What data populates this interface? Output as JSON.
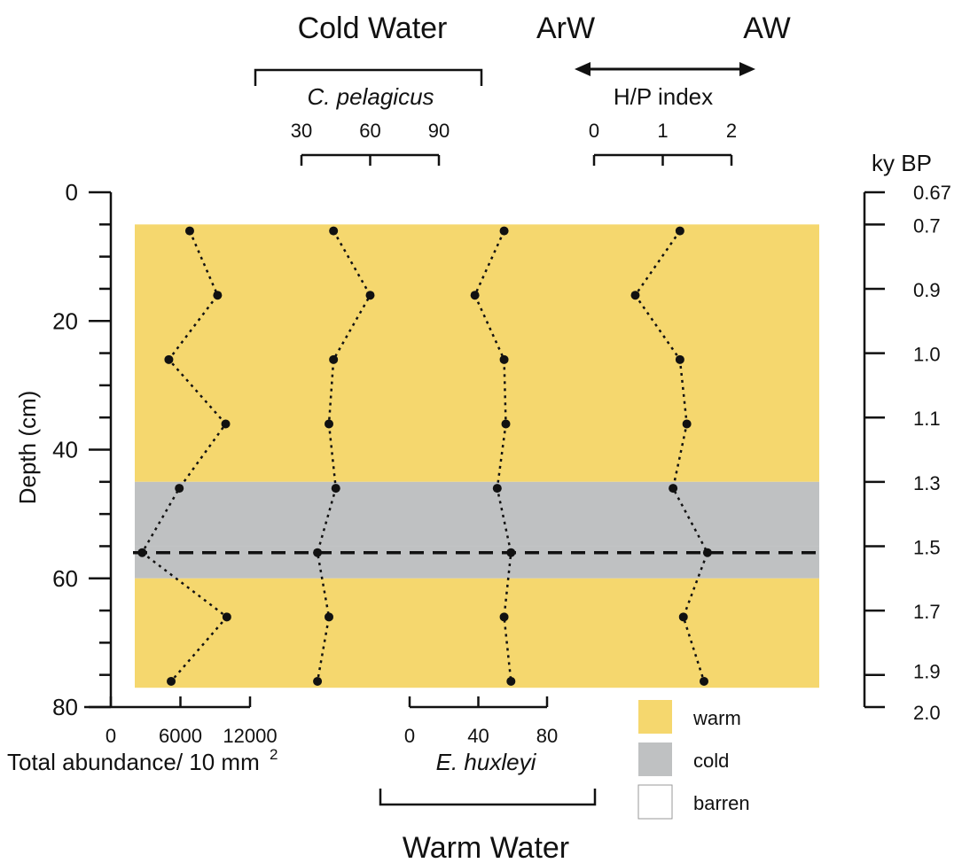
{
  "chart_data": {
    "type": "line",
    "top_header": {
      "left_label": "Cold Water",
      "middle_label": "ArW",
      "right_label": "AW"
    },
    "bottom_header": {
      "label": "Warm Water"
    },
    "depth_axis": {
      "label": "Depth (cm)",
      "range": [
        0,
        80
      ],
      "ticks": [
        "0",
        "20",
        "40",
        "60",
        "80"
      ]
    },
    "age_axis": {
      "title": "ky BP",
      "ticks": [
        {
          "depth": 0,
          "label": "0.67"
        },
        {
          "depth": 5,
          "label": "0.7"
        },
        {
          "depth": 15,
          "label": "0.9"
        },
        {
          "depth": 25,
          "label": "1.0"
        },
        {
          "depth": 35,
          "label": "1.1"
        },
        {
          "depth": 45,
          "label": "1.3"
        },
        {
          "depth": 55,
          "label": "1.5"
        },
        {
          "depth": 65,
          "label": "1.7"
        },
        {
          "depth": 75,
          "label": "1.9"
        },
        {
          "depth": 80,
          "label": "2.0"
        }
      ]
    },
    "zones": [
      {
        "from": 5,
        "to": 45,
        "type": "warm",
        "color": "#f5d76e"
      },
      {
        "from": 45,
        "to": 55,
        "type": "cold",
        "color": "#bfc1c2"
      },
      {
        "from": 55,
        "to": 60,
        "type": "cold",
        "color": "#bfc1c2"
      },
      {
        "from": 60,
        "to": 77,
        "type": "warm",
        "color": "#f5d76e"
      }
    ],
    "boundary_depth": 56,
    "series": [
      {
        "key": "total",
        "axis_label": "Total abundance/ 10 mm",
        "axis_superscript": "2",
        "axis_position": "bottom",
        "ticks": [
          "0",
          "6000",
          "12000"
        ],
        "range": [
          0,
          12000
        ],
        "depths": [
          6,
          16,
          26,
          36,
          46,
          56,
          66,
          76
        ],
        "values": [
          6800,
          9200,
          5000,
          9900,
          5900,
          2700,
          10000,
          5200
        ]
      },
      {
        "key": "cpelagicus",
        "axis_label": "C. pelagicus",
        "axis_position": "top",
        "ticks": [
          "30",
          "60",
          "90"
        ],
        "range": [
          30,
          90
        ],
        "depths": [
          6,
          16,
          26,
          36,
          46,
          56,
          66,
          76
        ],
        "values": [
          44,
          60,
          44,
          42,
          45,
          37,
          42,
          37
        ]
      },
      {
        "key": "ehuxleyi",
        "axis_label": "E. huxleyi",
        "axis_position": "bottom",
        "ticks": [
          "0",
          "40",
          "80"
        ],
        "range": [
          0,
          80
        ],
        "depths": [
          6,
          16,
          26,
          36,
          46,
          56,
          66,
          76
        ],
        "values": [
          55,
          38,
          55,
          56,
          51,
          59,
          55,
          59
        ]
      },
      {
        "key": "hp",
        "axis_label": "H/P index",
        "axis_position": "top",
        "ticks": [
          "0",
          "1",
          "2"
        ],
        "range": [
          0,
          2
        ],
        "depths": [
          6,
          16,
          26,
          36,
          46,
          56,
          66,
          76
        ],
        "values": [
          1.25,
          0.6,
          1.25,
          1.35,
          1.15,
          1.65,
          1.3,
          1.6
        ]
      }
    ],
    "legend": [
      {
        "label": "warm",
        "color": "#f5d76e"
      },
      {
        "label": "cold",
        "color": "#bfc1c2"
      },
      {
        "label": "barren",
        "color": "#ffffff"
      }
    ]
  }
}
